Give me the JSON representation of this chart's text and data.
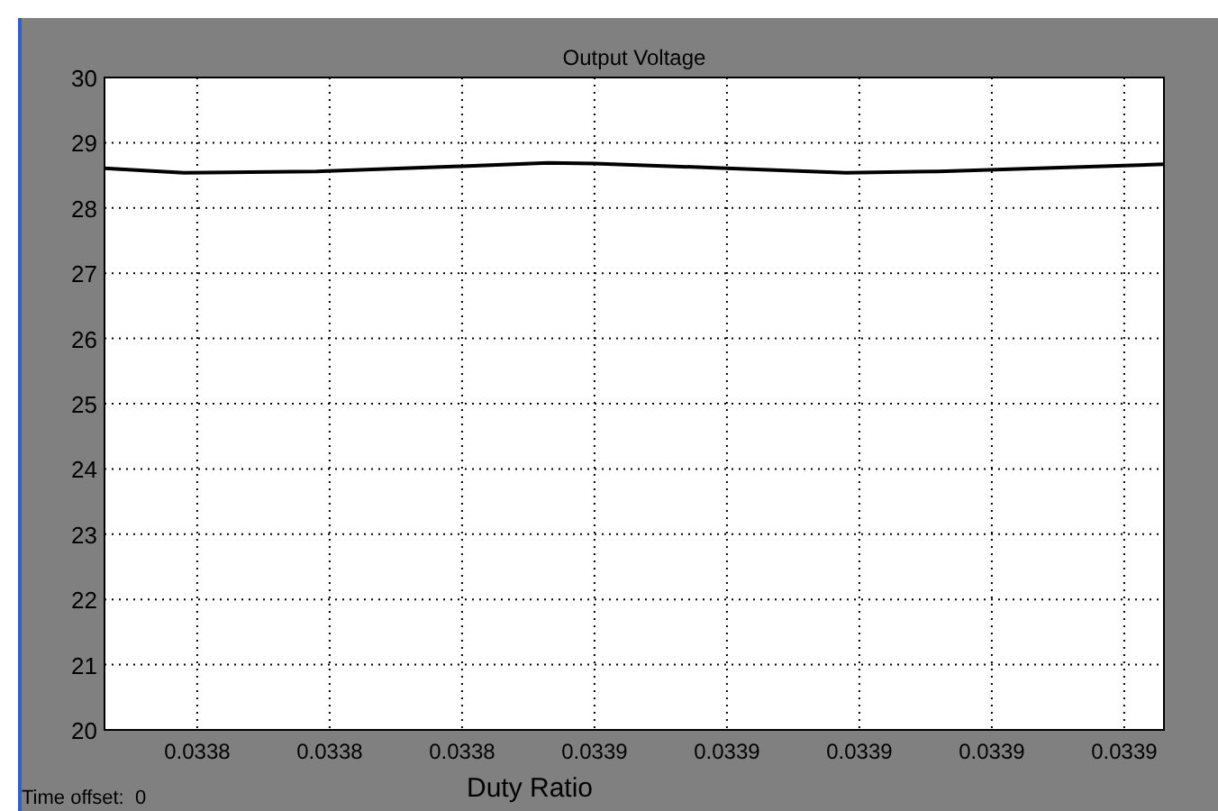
{
  "chart_data": {
    "type": "line",
    "title": "Output Voltage",
    "xlabel": "Duty Ratio",
    "annotations": [
      "Time offset:  0"
    ],
    "x": [
      0.033786,
      0.033798,
      0.033818,
      0.03384,
      0.033853,
      0.03386,
      0.03388,
      0.033898,
      0.033912,
      0.033946
    ],
    "series": [
      {
        "color": "#000000",
        "values": [
          28.61,
          28.54,
          28.56,
          28.64,
          28.69,
          28.68,
          28.61,
          28.54,
          28.56,
          28.67
        ]
      }
    ],
    "xlim": [
      0.033786,
      0.033946
    ],
    "xticks": [
      {
        "value": 0.0338,
        "label": "0.0338"
      },
      {
        "value": 0.03382,
        "label": "0.0338"
      },
      {
        "value": 0.03384,
        "label": "0.0338"
      },
      {
        "value": 0.03386,
        "label": "0.0339"
      },
      {
        "value": 0.03388,
        "label": "0.0339"
      },
      {
        "value": 0.0339,
        "label": "0.0339"
      },
      {
        "value": 0.03392,
        "label": "0.0339"
      },
      {
        "value": 0.03394,
        "label": "0.0339"
      }
    ],
    "ylim": [
      20,
      30
    ],
    "yticks": [
      20,
      21,
      22,
      23,
      24,
      25,
      26,
      27,
      28,
      29,
      30
    ],
    "grid": true,
    "line_style": "solid",
    "marker": "none"
  }
}
